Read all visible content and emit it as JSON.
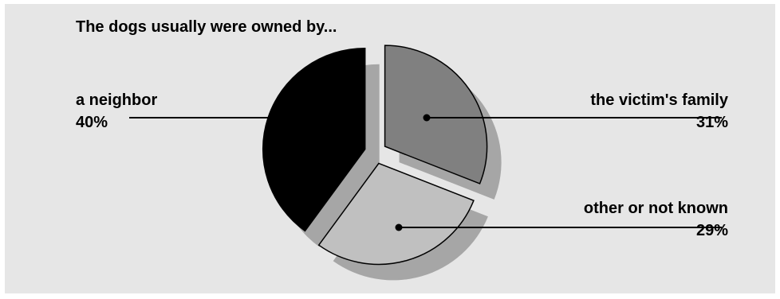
{
  "chart_data": {
    "type": "pie",
    "title": "The dogs usually were owned by...",
    "slices": [
      {
        "label": "the victim's family",
        "value": 31,
        "value_label": "31%",
        "color": "#808080"
      },
      {
        "label": "other or not known",
        "value": 29,
        "value_label": "29%",
        "color": "#c0c0c0"
      },
      {
        "label": "a neighbor",
        "value": 40,
        "value_label": "40%",
        "color": "#000000"
      }
    ],
    "exploded": true,
    "shadow_color": "#a6a6a6",
    "background": "#e6e6e6"
  }
}
